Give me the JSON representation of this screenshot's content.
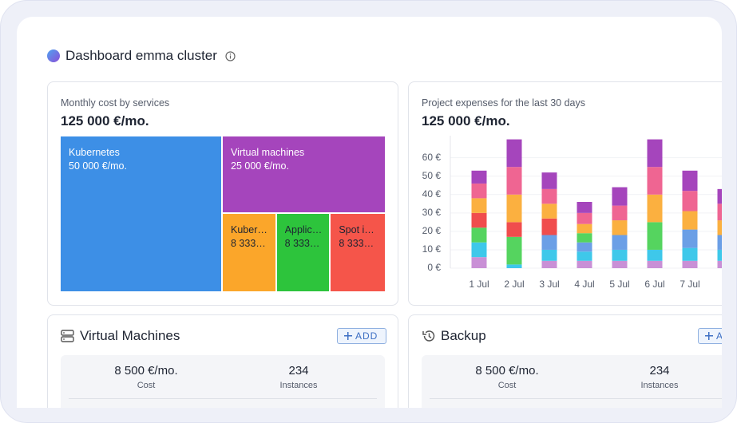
{
  "header": {
    "title": "Dashboard emma cluster"
  },
  "cost_card": {
    "title": "Monthly cost by services",
    "total": "125 000 €/mo.",
    "chart_data": {
      "type": "treemap",
      "names": [
        "Kubernetes",
        "Virtual machines",
        "Kuber…",
        "Applic…",
        "Spot i…"
      ],
      "values": [
        50000,
        25000,
        8333,
        8333,
        8333
      ],
      "value_labels": [
        "50 000 €/mo.",
        "25 000 €/mo.",
        "8 333…",
        "8 333…",
        "8 333…"
      ],
      "colors": [
        "#3d8fe6",
        "#a545bc",
        "#fba62a",
        "#2dc43c",
        "#f5554a"
      ]
    }
  },
  "expenses_card": {
    "title": "Project expenses for the last 30 days",
    "total": "125 000 €/mo.",
    "chart_data": {
      "type": "bar",
      "stacked": true,
      "categories": [
        "1 Jul",
        "2 Jul",
        "3 Jul",
        "4 Jul",
        "5 Jul",
        "6 Jul",
        "7 Jul",
        null
      ],
      "series": [
        {
          "color": "#c990d6",
          "values": [
            6,
            0,
            4,
            4,
            4,
            4,
            4,
            4
          ]
        },
        {
          "color": "#3ec8ea",
          "values": [
            8,
            2,
            6,
            5,
            6,
            6,
            7,
            6
          ]
        },
        {
          "color": "#6b9fe6",
          "values": [
            0,
            0,
            8,
            5,
            8,
            0,
            10,
            8
          ]
        },
        {
          "color": "#55d45f",
          "values": [
            8,
            15,
            0,
            5,
            0,
            15,
            0,
            0
          ]
        },
        {
          "color": "#f04d4d",
          "values": [
            8,
            8,
            9,
            0,
            0,
            0,
            0,
            0
          ]
        },
        {
          "color": "#fbb040",
          "values": [
            8,
            15,
            8,
            5,
            8,
            15,
            10,
            8
          ]
        },
        {
          "color": "#ef6592",
          "values": [
            8,
            15,
            8,
            6,
            8,
            15,
            11,
            9
          ]
        },
        {
          "color": "#a545bc",
          "values": [
            7,
            15,
            9,
            6,
            10,
            15,
            11,
            8
          ]
        }
      ],
      "ylim": [
        0,
        72
      ],
      "yticks": [
        {
          "value": 0,
          "label": "0 €"
        },
        {
          "value": 10,
          "label": "10 €"
        },
        {
          "value": 20,
          "label": "20 €"
        },
        {
          "value": 30,
          "label": "30 €"
        },
        {
          "value": 40,
          "label": "40 €"
        },
        {
          "value": 50,
          "label": "50 €"
        },
        {
          "value": 60,
          "label": "60 €"
        }
      ],
      "grid": true
    }
  },
  "vm_card": {
    "title": "Virtual Machines",
    "button": "ADD",
    "stats": [
      {
        "value": "8 500 €/mo.",
        "label": "Cost"
      },
      {
        "value": "234",
        "label": "Instances"
      }
    ]
  },
  "backup_card": {
    "title": "Backup",
    "button": "ADD",
    "stats": [
      {
        "value": "8 500 €/mo.",
        "label": "Cost"
      },
      {
        "value": "234",
        "label": "Instances"
      }
    ]
  }
}
